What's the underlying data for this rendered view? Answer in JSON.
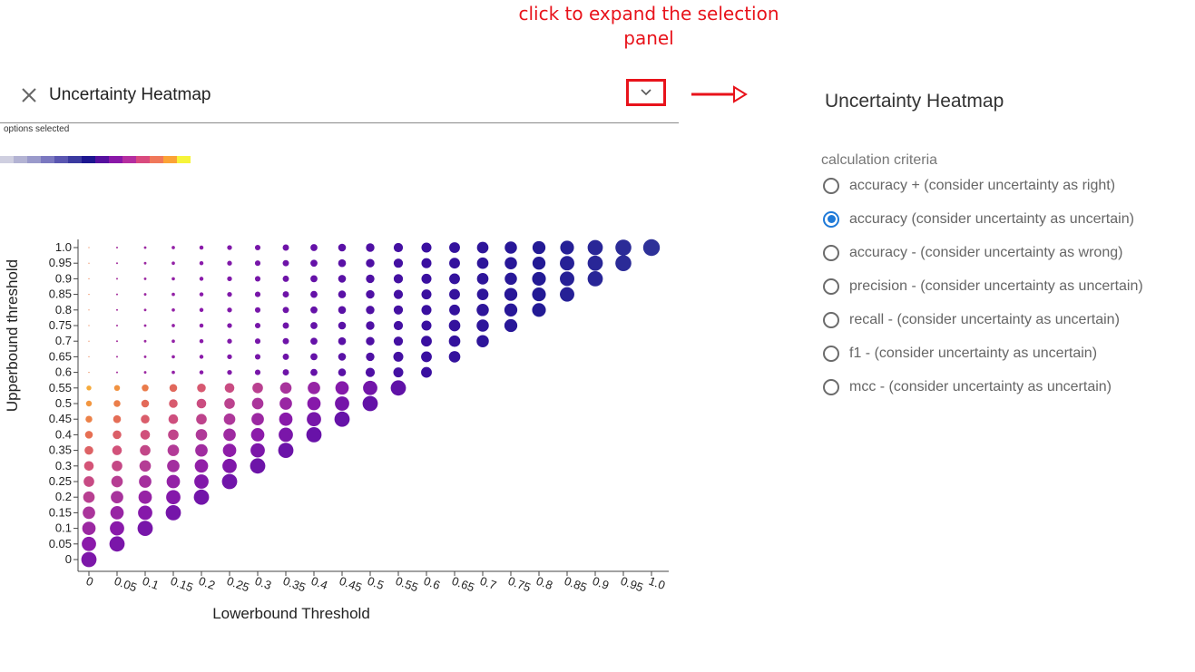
{
  "annotation": "click to expand the selection panel",
  "header": {
    "title": "Uncertainty Heatmap",
    "close_icon": "close-icon",
    "expand_icon": "chevron-down-icon"
  },
  "options_selected": "options selected",
  "legend_colors": [
    "#cfcfe0",
    "#b3b3d3",
    "#9a9acb",
    "#7b78c0",
    "#5a56b1",
    "#3b3aa0",
    "#1d1690",
    "#56109f",
    "#8a18a8",
    "#b52ea0",
    "#d94a7e",
    "#f0785a",
    "#fba336",
    "#f6f43a"
  ],
  "panel": {
    "title": "Uncertainty Heatmap",
    "criteria_label": "calculation criteria",
    "options": [
      {
        "label": "accuracy + (consider uncertainty as right)",
        "checked": false
      },
      {
        "label": "accuracy (consider uncertainty as uncertain)",
        "checked": true
      },
      {
        "label": "accuracy - (consider uncertainty as wrong)",
        "checked": false
      },
      {
        "label": "precision - (consider uncertainty as uncertain)",
        "checked": false
      },
      {
        "label": "recall - (consider uncertainty as uncertain)",
        "checked": false
      },
      {
        "label": "f1 - (consider uncertainty as uncertain)",
        "checked": false
      },
      {
        "label": "mcc - (consider uncertainty as uncertain)",
        "checked": false
      }
    ]
  },
  "chart_data": {
    "type": "scatter",
    "xlabel": "Lowerbound Threshold",
    "ylabel": "Upperbound threshold",
    "x_ticks": [
      "0",
      "0.05",
      "0.1",
      "0.15",
      "0.2",
      "0.25",
      "0.3",
      "0.35",
      "0.4",
      "0.45",
      "0.5",
      "0.55",
      "0.6",
      "0.65",
      "0.7",
      "0.75",
      "0.8",
      "0.85",
      "0.9",
      "0.95",
      "1.0"
    ],
    "y_ticks": [
      "0",
      "0.05",
      "0.1",
      "0.15",
      "0.2",
      "0.25",
      "0.3",
      "0.35",
      "0.4",
      "0.45",
      "0.5",
      "0.55",
      "0.6",
      "0.65",
      "0.7",
      "0.75",
      "0.8",
      "0.85",
      "0.9",
      "0.95",
      "1.0"
    ],
    "points": "all (lowerbound, upperbound) pairs with upperbound >= lowerbound; dot size grows and colour shifts from yellow/orange to purple to dark blue with distance from the diagonal / higher thresholds",
    "grid": false
  }
}
